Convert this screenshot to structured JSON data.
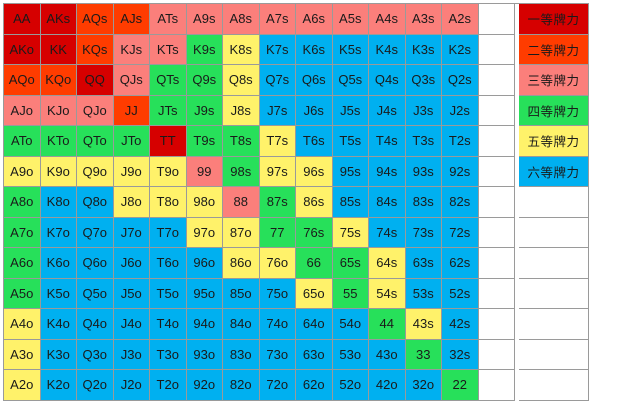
{
  "colors": {
    "tier1": "#d60000",
    "tier2": "#ff3c00",
    "tier3": "#fb7f7b",
    "tier4": "#27e05a",
    "tier5": "#fff26a",
    "tier6": "#00b0f0",
    "blank": "#ffffff"
  },
  "legend": [
    {
      "label": "一等牌力",
      "tier": 1
    },
    {
      "label": "二等牌力",
      "tier": 2
    },
    {
      "label": "三等牌力",
      "tier": 3
    },
    {
      "label": "四等牌力",
      "tier": 4
    },
    {
      "label": "五等牌力",
      "tier": 5
    },
    {
      "label": "六等牌力",
      "tier": 6
    }
  ],
  "rows": [
    {
      "hands": [
        "AA",
        "AKs",
        "AQs",
        "AJs",
        "ATs",
        "A9s",
        "A8s",
        "A7s",
        "A6s",
        "A5s",
        "A4s",
        "A3s",
        "A2s"
      ],
      "tiers": [
        1,
        1,
        2,
        2,
        3,
        3,
        3,
        3,
        3,
        3,
        3,
        3,
        3
      ]
    },
    {
      "hands": [
        "AKo",
        "KK",
        "KQs",
        "KJs",
        "KTs",
        "K9s",
        "K8s",
        "K7s",
        "K6s",
        "K5s",
        "K4s",
        "K3s",
        "K2s"
      ],
      "tiers": [
        1,
        1,
        2,
        3,
        3,
        4,
        5,
        6,
        6,
        6,
        6,
        6,
        6
      ]
    },
    {
      "hands": [
        "AQo",
        "KQo",
        "QQ",
        "QJs",
        "QTs",
        "Q9s",
        "Q8s",
        "Q7s",
        "Q6s",
        "Q5s",
        "Q4s",
        "Q3s",
        "Q2s"
      ],
      "tiers": [
        2,
        2,
        1,
        3,
        4,
        4,
        5,
        6,
        6,
        6,
        6,
        6,
        6
      ]
    },
    {
      "hands": [
        "AJo",
        "KJo",
        "QJo",
        "JJ",
        "JTs",
        "J9s",
        "J8s",
        "J7s",
        "J6s",
        "J5s",
        "J4s",
        "J3s",
        "J2s"
      ],
      "tiers": [
        3,
        3,
        3,
        2,
        4,
        4,
        5,
        6,
        6,
        6,
        6,
        6,
        6
      ]
    },
    {
      "hands": [
        "ATo",
        "KTo",
        "QTo",
        "JTo",
        "TT",
        "T9s",
        "T8s",
        "T7s",
        "T6s",
        "T5s",
        "T4s",
        "T3s",
        "T2s"
      ],
      "tiers": [
        4,
        4,
        4,
        4,
        1,
        4,
        4,
        5,
        6,
        6,
        6,
        6,
        6
      ]
    },
    {
      "hands": [
        "A9o",
        "K9o",
        "Q9o",
        "J9o",
        "T9o",
        "99",
        "98s",
        "97s",
        "96s",
        "95s",
        "94s",
        "93s",
        "92s"
      ],
      "tiers": [
        5,
        5,
        5,
        5,
        5,
        3,
        4,
        5,
        5,
        6,
        6,
        6,
        6
      ]
    },
    {
      "hands": [
        "A8o",
        "K8o",
        "Q8o",
        "J8o",
        "T8o",
        "98o",
        "88",
        "87s",
        "86s",
        "85s",
        "84s",
        "83s",
        "82s"
      ],
      "tiers": [
        4,
        6,
        6,
        5,
        5,
        5,
        3,
        4,
        5,
        6,
        6,
        6,
        6
      ]
    },
    {
      "hands": [
        "A7o",
        "K7o",
        "Q7o",
        "J7o",
        "T7o",
        "97o",
        "87o",
        "77",
        "76s",
        "75s",
        "74s",
        "73s",
        "72s"
      ],
      "tiers": [
        4,
        6,
        6,
        6,
        6,
        5,
        5,
        4,
        4,
        5,
        6,
        6,
        6
      ]
    },
    {
      "hands": [
        "A6o",
        "K6o",
        "Q6o",
        "J6o",
        "T6o",
        "96o",
        "86o",
        "76o",
        "66",
        "65s",
        "64s",
        "63s",
        "62s"
      ],
      "tiers": [
        4,
        6,
        6,
        6,
        6,
        6,
        5,
        5,
        4,
        4,
        5,
        6,
        6
      ]
    },
    {
      "hands": [
        "A5o",
        "K5o",
        "Q5o",
        "J5o",
        "T5o",
        "95o",
        "85o",
        "75o",
        "65o",
        "55",
        "54s",
        "53s",
        "52s"
      ],
      "tiers": [
        4,
        6,
        6,
        6,
        6,
        6,
        6,
        6,
        5,
        4,
        5,
        6,
        6
      ]
    },
    {
      "hands": [
        "A4o",
        "K4o",
        "Q4o",
        "J4o",
        "T4o",
        "94o",
        "84o",
        "74o",
        "64o",
        "54o",
        "44",
        "43s",
        "42s"
      ],
      "tiers": [
        5,
        6,
        6,
        6,
        6,
        6,
        6,
        6,
        6,
        6,
        4,
        5,
        6
      ]
    },
    {
      "hands": [
        "A3o",
        "K3o",
        "Q3o",
        "J3o",
        "T3o",
        "93o",
        "83o",
        "73o",
        "63o",
        "53o",
        "43o",
        "33",
        "32s"
      ],
      "tiers": [
        5,
        6,
        6,
        6,
        6,
        6,
        6,
        6,
        6,
        6,
        6,
        4,
        6
      ]
    },
    {
      "hands": [
        "A2o",
        "K2o",
        "Q2o",
        "J2o",
        "T2o",
        "92o",
        "82o",
        "72o",
        "62o",
        "52o",
        "42o",
        "32o",
        "22"
      ],
      "tiers": [
        5,
        6,
        6,
        6,
        6,
        6,
        6,
        6,
        6,
        6,
        6,
        6,
        4
      ]
    }
  ]
}
